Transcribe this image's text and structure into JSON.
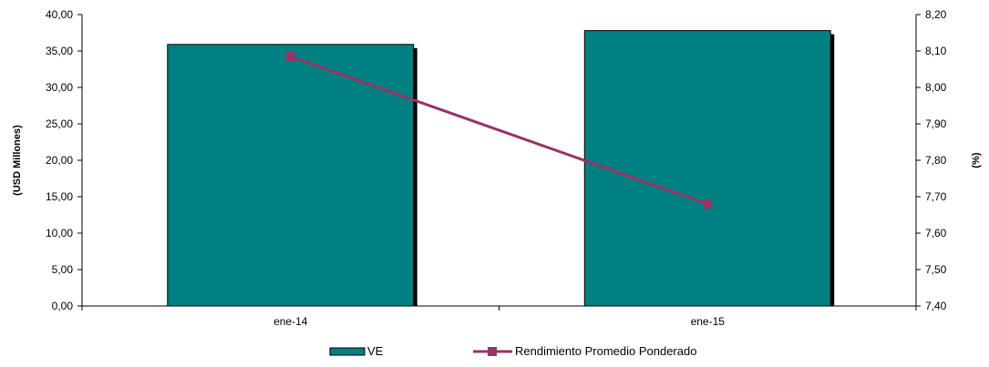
{
  "chart_data": {
    "type": "bar",
    "categories": [
      "ene-14",
      "ene-15"
    ],
    "series": [
      {
        "name": "VE",
        "type": "bar",
        "axis": "left",
        "values": [
          35.9,
          37.8
        ],
        "color": "#008080"
      },
      {
        "name": "Rendimiento Promedio Ponderado",
        "type": "line",
        "axis": "right",
        "values": [
          8.085,
          7.68
        ],
        "color": "#993366",
        "marker": "square"
      }
    ],
    "ylabel": "(USD Millones)",
    "y2label": "(%)",
    "ylim": [
      0,
      40
    ],
    "y2lim": [
      7.4,
      8.2
    ],
    "yticks": [
      "0,00",
      "5,00",
      "10,00",
      "15,00",
      "20,00",
      "25,00",
      "30,00",
      "35,00",
      "40,00"
    ],
    "y2ticks": [
      "7,40",
      "7,50",
      "7,60",
      "7,70",
      "7,80",
      "7,90",
      "8,00",
      "8,10",
      "8,20"
    ],
    "grid": false,
    "legend_position": "bottom"
  }
}
